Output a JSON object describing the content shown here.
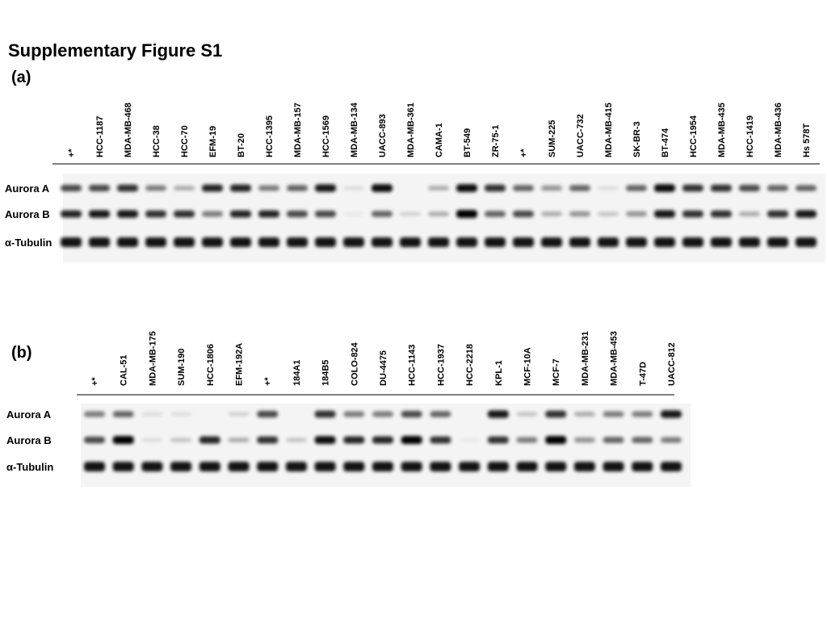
{
  "title": "Supplementary Figure S1",
  "panels": [
    {
      "label": "(a)",
      "lanes": [
        "+*",
        "HCC-1187",
        "MDA-MB-468",
        "HCC-38",
        "HCC-70",
        "EFM-19",
        "BT-20",
        "HCC-1395",
        "MDA-MB-157",
        "HCC-1569",
        "MDA-MB-134",
        "UACC-893",
        "MDA-MB-361",
        "CAMA-1",
        "BT-549",
        "ZR-75-1",
        "+*",
        "SUM-225",
        "UACC-732",
        "MDA-MB-415",
        "SK-BR-3",
        "BT-474",
        "HCC-1954",
        "MDA-MB-435",
        "HCC-1419",
        "MDA-MB-436",
        "Hs 578T"
      ],
      "rows": [
        "Aurora A",
        "Aurora B",
        "α-Tubulin"
      ]
    },
    {
      "label": "(b)",
      "lanes": [
        "+*",
        "CAL-51",
        "MDA-MB-175",
        "SUM-190",
        "HCC-1806",
        "EFM-192A",
        "+*",
        "184A1",
        "184B5",
        "COLO-824",
        "DU-4475",
        "HCC-1143",
        "HCC-1937",
        "HCC-2218",
        "KPL-1",
        "MCF-10A",
        "MCF-7",
        "MDA-MB-231",
        "MDA-MB-453",
        "T-47D",
        "UACC-812"
      ],
      "rows": [
        "Aurora A",
        "Aurora B",
        "α-Tubulin"
      ]
    }
  ]
}
